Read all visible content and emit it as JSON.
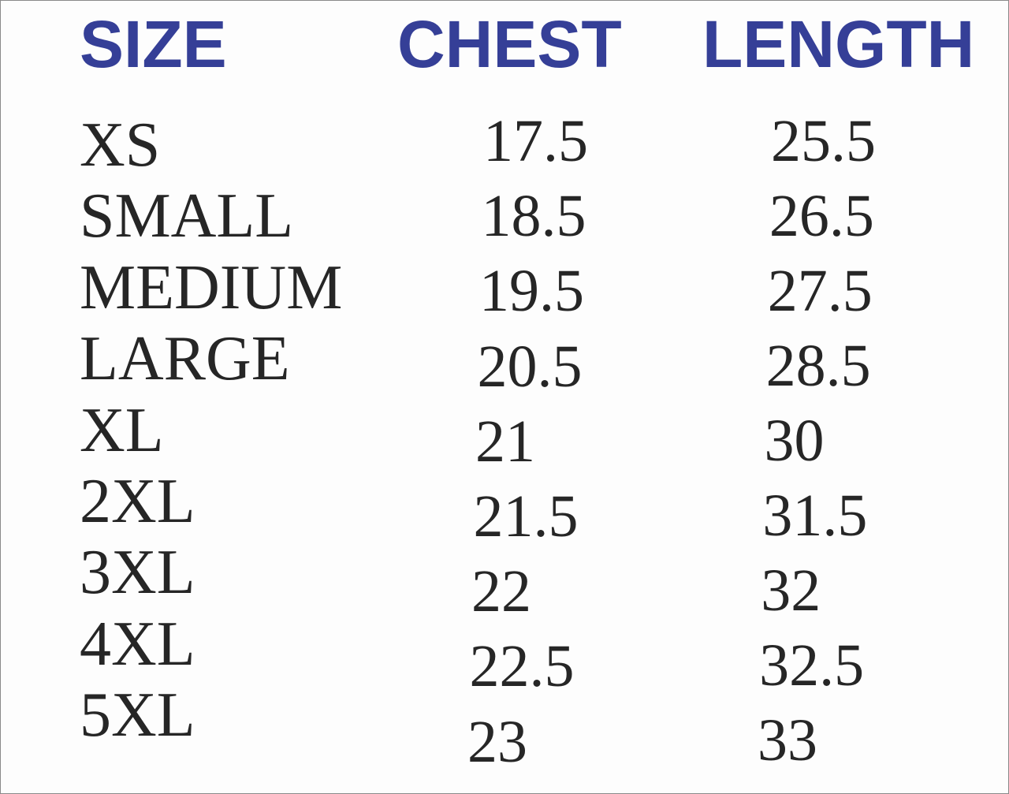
{
  "table": {
    "headers": [
      "SIZE",
      "CHEST",
      "LENGTH"
    ],
    "rows": [
      [
        "XS",
        17.5,
        25.5
      ],
      [
        "SMALL",
        18.5,
        26.5
      ],
      [
        "MEDIUM",
        19.5,
        27.5
      ],
      [
        "LARGE",
        20.5,
        28.5
      ],
      [
        "XL",
        21,
        30
      ],
      [
        "2XL",
        21.5,
        31.5
      ],
      [
        "3XL",
        22,
        32
      ],
      [
        "4XL",
        22.5,
        32.5
      ],
      [
        "5XL",
        23,
        33
      ]
    ]
  }
}
